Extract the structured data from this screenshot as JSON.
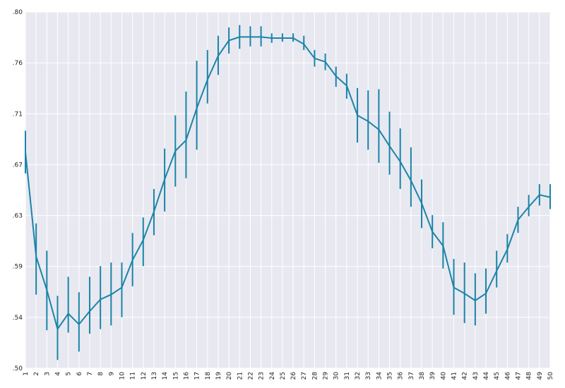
{
  "chart_data": {
    "type": "line",
    "title": "",
    "xlabel": "",
    "ylabel": "",
    "grid": true,
    "line_color": "#1a85a8",
    "background_color": "#e8e8f1",
    "grid_color": "#ffffff",
    "ylim": [
      0.5,
      0.8
    ],
    "y_ticks": [
      ".50",
      ".54",
      ".59",
      ".63",
      ".67",
      ".71",
      ".76",
      ".80"
    ],
    "x_tick_labels": [
      "1",
      "2",
      "3",
      "4",
      "5",
      "6",
      "7",
      "8",
      "9",
      "10",
      "11",
      "12",
      "13",
      "14",
      "15",
      "16",
      "17",
      "18",
      "19",
      "20",
      "21",
      "22",
      "23",
      "24",
      "25",
      "26",
      "27",
      "28",
      "29",
      "30",
      "31",
      "32",
      "33",
      "34",
      "35",
      "36",
      "37",
      "38",
      "39",
      "40",
      "41",
      "42",
      "43",
      "44",
      "45",
      "46",
      "47",
      "48",
      "49",
      "50"
    ],
    "series": [
      {
        "x": [
          1,
          2,
          3,
          4,
          5,
          6,
          7,
          8,
          9,
          10,
          11,
          12,
          13,
          14,
          15,
          16,
          17,
          18,
          19,
          20,
          21,
          22,
          23,
          24,
          25,
          26,
          27,
          28,
          29,
          30,
          31,
          32,
          33,
          34,
          35,
          36,
          37,
          38,
          39,
          40,
          41,
          42,
          43,
          44,
          45,
          46,
          47,
          48,
          49,
          50
        ],
        "values": [
          0.682,
          0.594,
          0.566,
          0.533,
          0.546,
          0.537,
          0.548,
          0.558,
          0.562,
          0.568,
          0.591,
          0.608,
          0.632,
          0.659,
          0.683,
          0.692,
          0.719,
          0.743,
          0.763,
          0.776,
          0.779,
          0.779,
          0.779,
          0.778,
          0.778,
          0.778,
          0.773,
          0.761,
          0.758,
          0.746,
          0.738,
          0.713,
          0.708,
          0.701,
          0.687,
          0.674,
          0.658,
          0.639,
          0.615,
          0.603,
          0.568,
          0.563,
          0.557,
          0.563,
          0.582,
          0.6,
          0.625,
          0.636,
          0.646,
          0.644
        ],
        "err_low": [
          0.664,
          0.562,
          0.532,
          0.507,
          0.53,
          0.514,
          0.529,
          0.533,
          0.536,
          0.543,
          0.569,
          0.586,
          0.612,
          0.632,
          0.653,
          0.66,
          0.684,
          0.723,
          0.747,
          0.765,
          0.769,
          0.771,
          0.771,
          0.774,
          0.775,
          0.775,
          0.768,
          0.754,
          0.751,
          0.737,
          0.727,
          0.69,
          0.684,
          0.673,
          0.663,
          0.651,
          0.636,
          0.618,
          0.601,
          0.584,
          0.545,
          0.538,
          0.536,
          0.546,
          0.568,
          0.589,
          0.614,
          0.628,
          0.637,
          0.634
        ],
        "err_high": [
          0.7,
          0.622,
          0.599,
          0.561,
          0.577,
          0.564,
          0.577,
          0.586,
          0.589,
          0.589,
          0.614,
          0.627,
          0.651,
          0.685,
          0.713,
          0.733,
          0.759,
          0.768,
          0.78,
          0.787,
          0.789,
          0.788,
          0.788,
          0.782,
          0.782,
          0.782,
          0.78,
          0.768,
          0.765,
          0.754,
          0.748,
          0.736,
          0.734,
          0.735,
          0.716,
          0.702,
          0.686,
          0.659,
          0.629,
          0.623,
          0.592,
          0.589,
          0.58,
          0.584,
          0.599,
          0.613,
          0.636,
          0.646,
          0.655,
          0.655
        ]
      }
    ]
  }
}
